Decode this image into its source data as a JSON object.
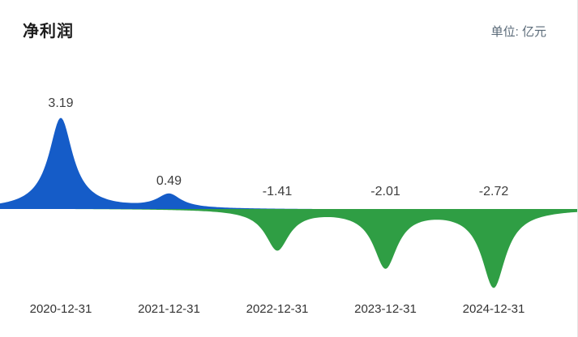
{
  "header": {
    "title": "净利润",
    "unit": "单位: 亿元"
  },
  "chart_data": {
    "type": "area",
    "title": "净利润",
    "unit": "亿元",
    "categories": [
      "2020-12-31",
      "2021-12-31",
      "2022-12-31",
      "2023-12-31",
      "2024-12-31"
    ],
    "values": [
      3.19,
      0.49,
      -1.41,
      -2.01,
      -2.72
    ],
    "points": [
      {
        "date": "2020-12-31",
        "value": 3.19,
        "label": "3.19"
      },
      {
        "date": "2021-12-31",
        "value": 0.49,
        "label": "0.49"
      },
      {
        "date": "2022-12-31",
        "value": -1.41,
        "label": "-1.41"
      },
      {
        "date": "2023-12-31",
        "value": -2.01,
        "label": "-2.01"
      },
      {
        "date": "2024-12-31",
        "value": -2.72,
        "label": "-2.72"
      }
    ],
    "baseline_value": 0,
    "positive_color": "#155cc8",
    "negative_color": "#2f9e44",
    "grid": false,
    "legend": false,
    "value_labels_shown": true
  }
}
